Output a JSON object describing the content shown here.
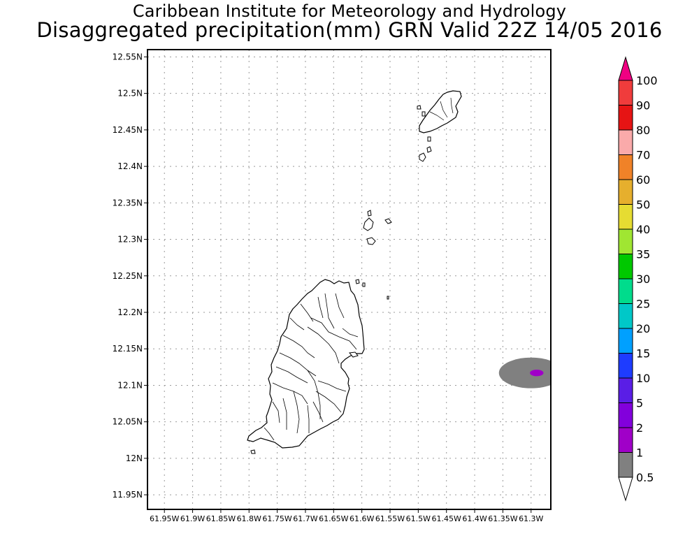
{
  "header": {
    "title": "Caribbean Institute for Meteorology and Hydrology",
    "subtitle": "Disaggregated precipitation(mm) GRN Valid 22Z 14/05 2016"
  },
  "map": {
    "lat_range": [
      11.93,
      12.56
    ],
    "lon_range": [
      -61.98,
      -61.265
    ],
    "lat_ticks": [
      {
        "value": 12.55,
        "label": "12.55N"
      },
      {
        "value": 12.5,
        "label": "12.5N"
      },
      {
        "value": 12.45,
        "label": "12.45N"
      },
      {
        "value": 12.4,
        "label": "12.4N"
      },
      {
        "value": 12.35,
        "label": "12.35N"
      },
      {
        "value": 12.3,
        "label": "12.3N"
      },
      {
        "value": 12.25,
        "label": "12.25N"
      },
      {
        "value": 12.2,
        "label": "12.2N"
      },
      {
        "value": 12.15,
        "label": "12.15N"
      },
      {
        "value": 12.1,
        "label": "12.1N"
      },
      {
        "value": 12.05,
        "label": "12.05N"
      },
      {
        "value": 12.0,
        "label": "12N"
      },
      {
        "value": 11.95,
        "label": "11.95N"
      }
    ],
    "lon_ticks": [
      {
        "value": -61.95,
        "label": "61.95W"
      },
      {
        "value": -61.9,
        "label": "61.9W"
      },
      {
        "value": -61.85,
        "label": "61.85W"
      },
      {
        "value": -61.8,
        "label": "61.8W"
      },
      {
        "value": -61.75,
        "label": "61.75W"
      },
      {
        "value": -61.7,
        "label": "61.7W"
      },
      {
        "value": -61.65,
        "label": "61.65W"
      },
      {
        "value": -61.6,
        "label": "61.6W"
      },
      {
        "value": -61.55,
        "label": "61.55W"
      },
      {
        "value": -61.5,
        "label": "61.5W"
      },
      {
        "value": -61.45,
        "label": "61.45W"
      },
      {
        "value": -61.4,
        "label": "61.4W"
      },
      {
        "value": -61.35,
        "label": "61.35W"
      },
      {
        "value": -61.3,
        "label": "61.3W"
      }
    ],
    "gridlines": "dotted",
    "precip_areas": [
      {
        "category": "0.5-1 mm",
        "color": "#808080",
        "center_lon": -61.3,
        "center_lat": 12.117,
        "half_lon": 0.057,
        "half_lat": 0.021
      },
      {
        "category": "1-2 mm",
        "color": "#a000c8",
        "center_lon": -61.29,
        "center_lat": 12.117,
        "half_lon": 0.012,
        "half_lat": 0.0045
      }
    ]
  },
  "colorbar": {
    "labels": [
      "100",
      "90",
      "80",
      "70",
      "60",
      "50",
      "40",
      "35",
      "30",
      "25",
      "20",
      "15",
      "10",
      "5",
      "2",
      "1",
      "0.5"
    ],
    "colors": [
      "#f03c3c",
      "#e61414",
      "#faaaaa",
      "#f08228",
      "#e6af2d",
      "#e6dc32",
      "#a0e632",
      "#00c800",
      "#00dc8c",
      "#00c8c8",
      "#00a0ff",
      "#1e3cff",
      "#5a1ee6",
      "#8200dc",
      "#a000c8",
      "#808080"
    ],
    "top_arrow_color": "#f00082",
    "bottom_arrow_color": "#ffffff"
  }
}
